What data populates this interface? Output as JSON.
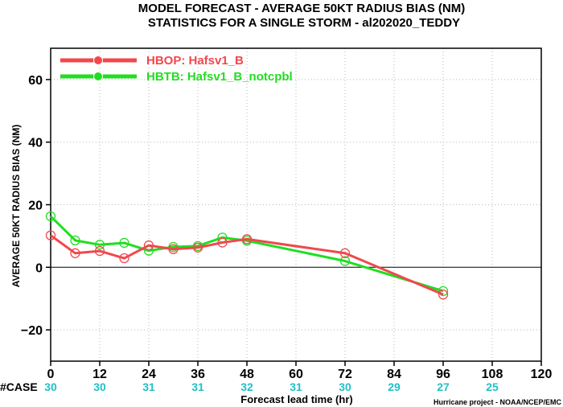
{
  "title_line1": "MODEL FORECAST - AVERAGE 50KT RADIUS BIAS (NM)",
  "title_line2": "STATISTICS FOR A SINGLE STORM - al202020_TEDDY",
  "case_label": "#CASE",
  "credit": "Hurricane project - NOAA/NCEP/EMC",
  "colors": {
    "hbop": "#f0484e",
    "hbtb": "#22dd22",
    "case": "#22c0c8",
    "zero_line": "#000000"
  },
  "chart_data": {
    "type": "line",
    "title": "MODEL FORECAST - AVERAGE 50KT RADIUS BIAS (NM)",
    "subtitle": "STATISTICS FOR A SINGLE STORM - al202020_TEDDY",
    "xlabel": "Forecast lead time (hr)",
    "ylabel": "AVERAGE 50KT RADIUS BIAS (NM)",
    "xlim": [
      0,
      120
    ],
    "ylim": [
      -30,
      70
    ],
    "xticks": [
      0,
      12,
      24,
      36,
      48,
      60,
      72,
      84,
      96,
      108,
      120
    ],
    "yticks": [
      -20,
      0,
      20,
      40,
      60
    ],
    "grid": true,
    "legend_position": "top-left",
    "series": [
      {
        "name": "HBOP: Hafsv1_B",
        "color": "#f0484e",
        "x": [
          0,
          6,
          12,
          18,
          24,
          30,
          36,
          42,
          48,
          72,
          96
        ],
        "y": [
          10.2,
          4.5,
          5.2,
          2.9,
          7.0,
          5.8,
          6.3,
          7.9,
          9.0,
          4.5,
          -8.7
        ]
      },
      {
        "name": "HBTB: Hafsv1_B_notcpbl",
        "color": "#22dd22",
        "x": [
          0,
          6,
          12,
          18,
          24,
          30,
          36,
          42,
          48,
          72,
          96
        ],
        "y": [
          16.3,
          8.6,
          7.2,
          7.8,
          5.3,
          6.5,
          6.8,
          9.5,
          8.5,
          2.0,
          -7.6
        ]
      }
    ],
    "case_counts": [
      {
        "x": 0,
        "n": 30
      },
      {
        "x": 12,
        "n": 30
      },
      {
        "x": 24,
        "n": 31
      },
      {
        "x": 36,
        "n": 31
      },
      {
        "x": 48,
        "n": 32
      },
      {
        "x": 60,
        "n": 31
      },
      {
        "x": 72,
        "n": 30
      },
      {
        "x": 84,
        "n": 29
      },
      {
        "x": 96,
        "n": 27
      },
      {
        "x": 108,
        "n": 25
      }
    ]
  }
}
